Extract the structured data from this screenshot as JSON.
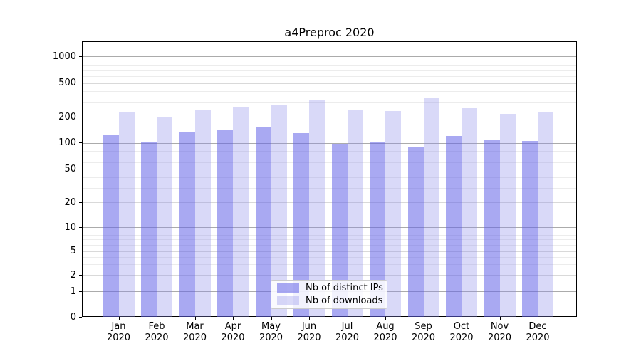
{
  "chart_data": {
    "type": "bar",
    "title": "a4Preproc 2020",
    "xlabel": "",
    "ylabel": "",
    "categories": [
      "Jan",
      "Feb",
      "Mar",
      "Apr",
      "May",
      "Jun",
      "Jul",
      "Aug",
      "Sep",
      "Oct",
      "Nov",
      "Dec"
    ],
    "year_label": "2020",
    "series": [
      {
        "name": "Nb of distinct IPs",
        "color": "#aaaaf2",
        "fill": "rgba(98,98,232,0.55)",
        "values": [
          125,
          102,
          135,
          140,
          150,
          130,
          98,
          102,
          90,
          120,
          108,
          105
        ]
      },
      {
        "name": "Nb of downloads",
        "color": "#d9d9f7",
        "fill": "rgba(140,140,235,0.33)",
        "values": [
          228,
          198,
          245,
          260,
          280,
          320,
          245,
          232,
          330,
          250,
          218,
          225
        ]
      }
    ],
    "yscale": "symlog",
    "yticks": [
      0,
      1,
      2,
      5,
      10,
      20,
      50,
      100,
      200,
      500,
      1000
    ],
    "ytick_labels": [
      "0",
      "1",
      "2",
      "5",
      "10",
      "20",
      "50",
      "100",
      "200",
      "500",
      "1000"
    ],
    "ylim": [
      0,
      1500
    ],
    "grid": true,
    "legend_position": "lower-center"
  }
}
